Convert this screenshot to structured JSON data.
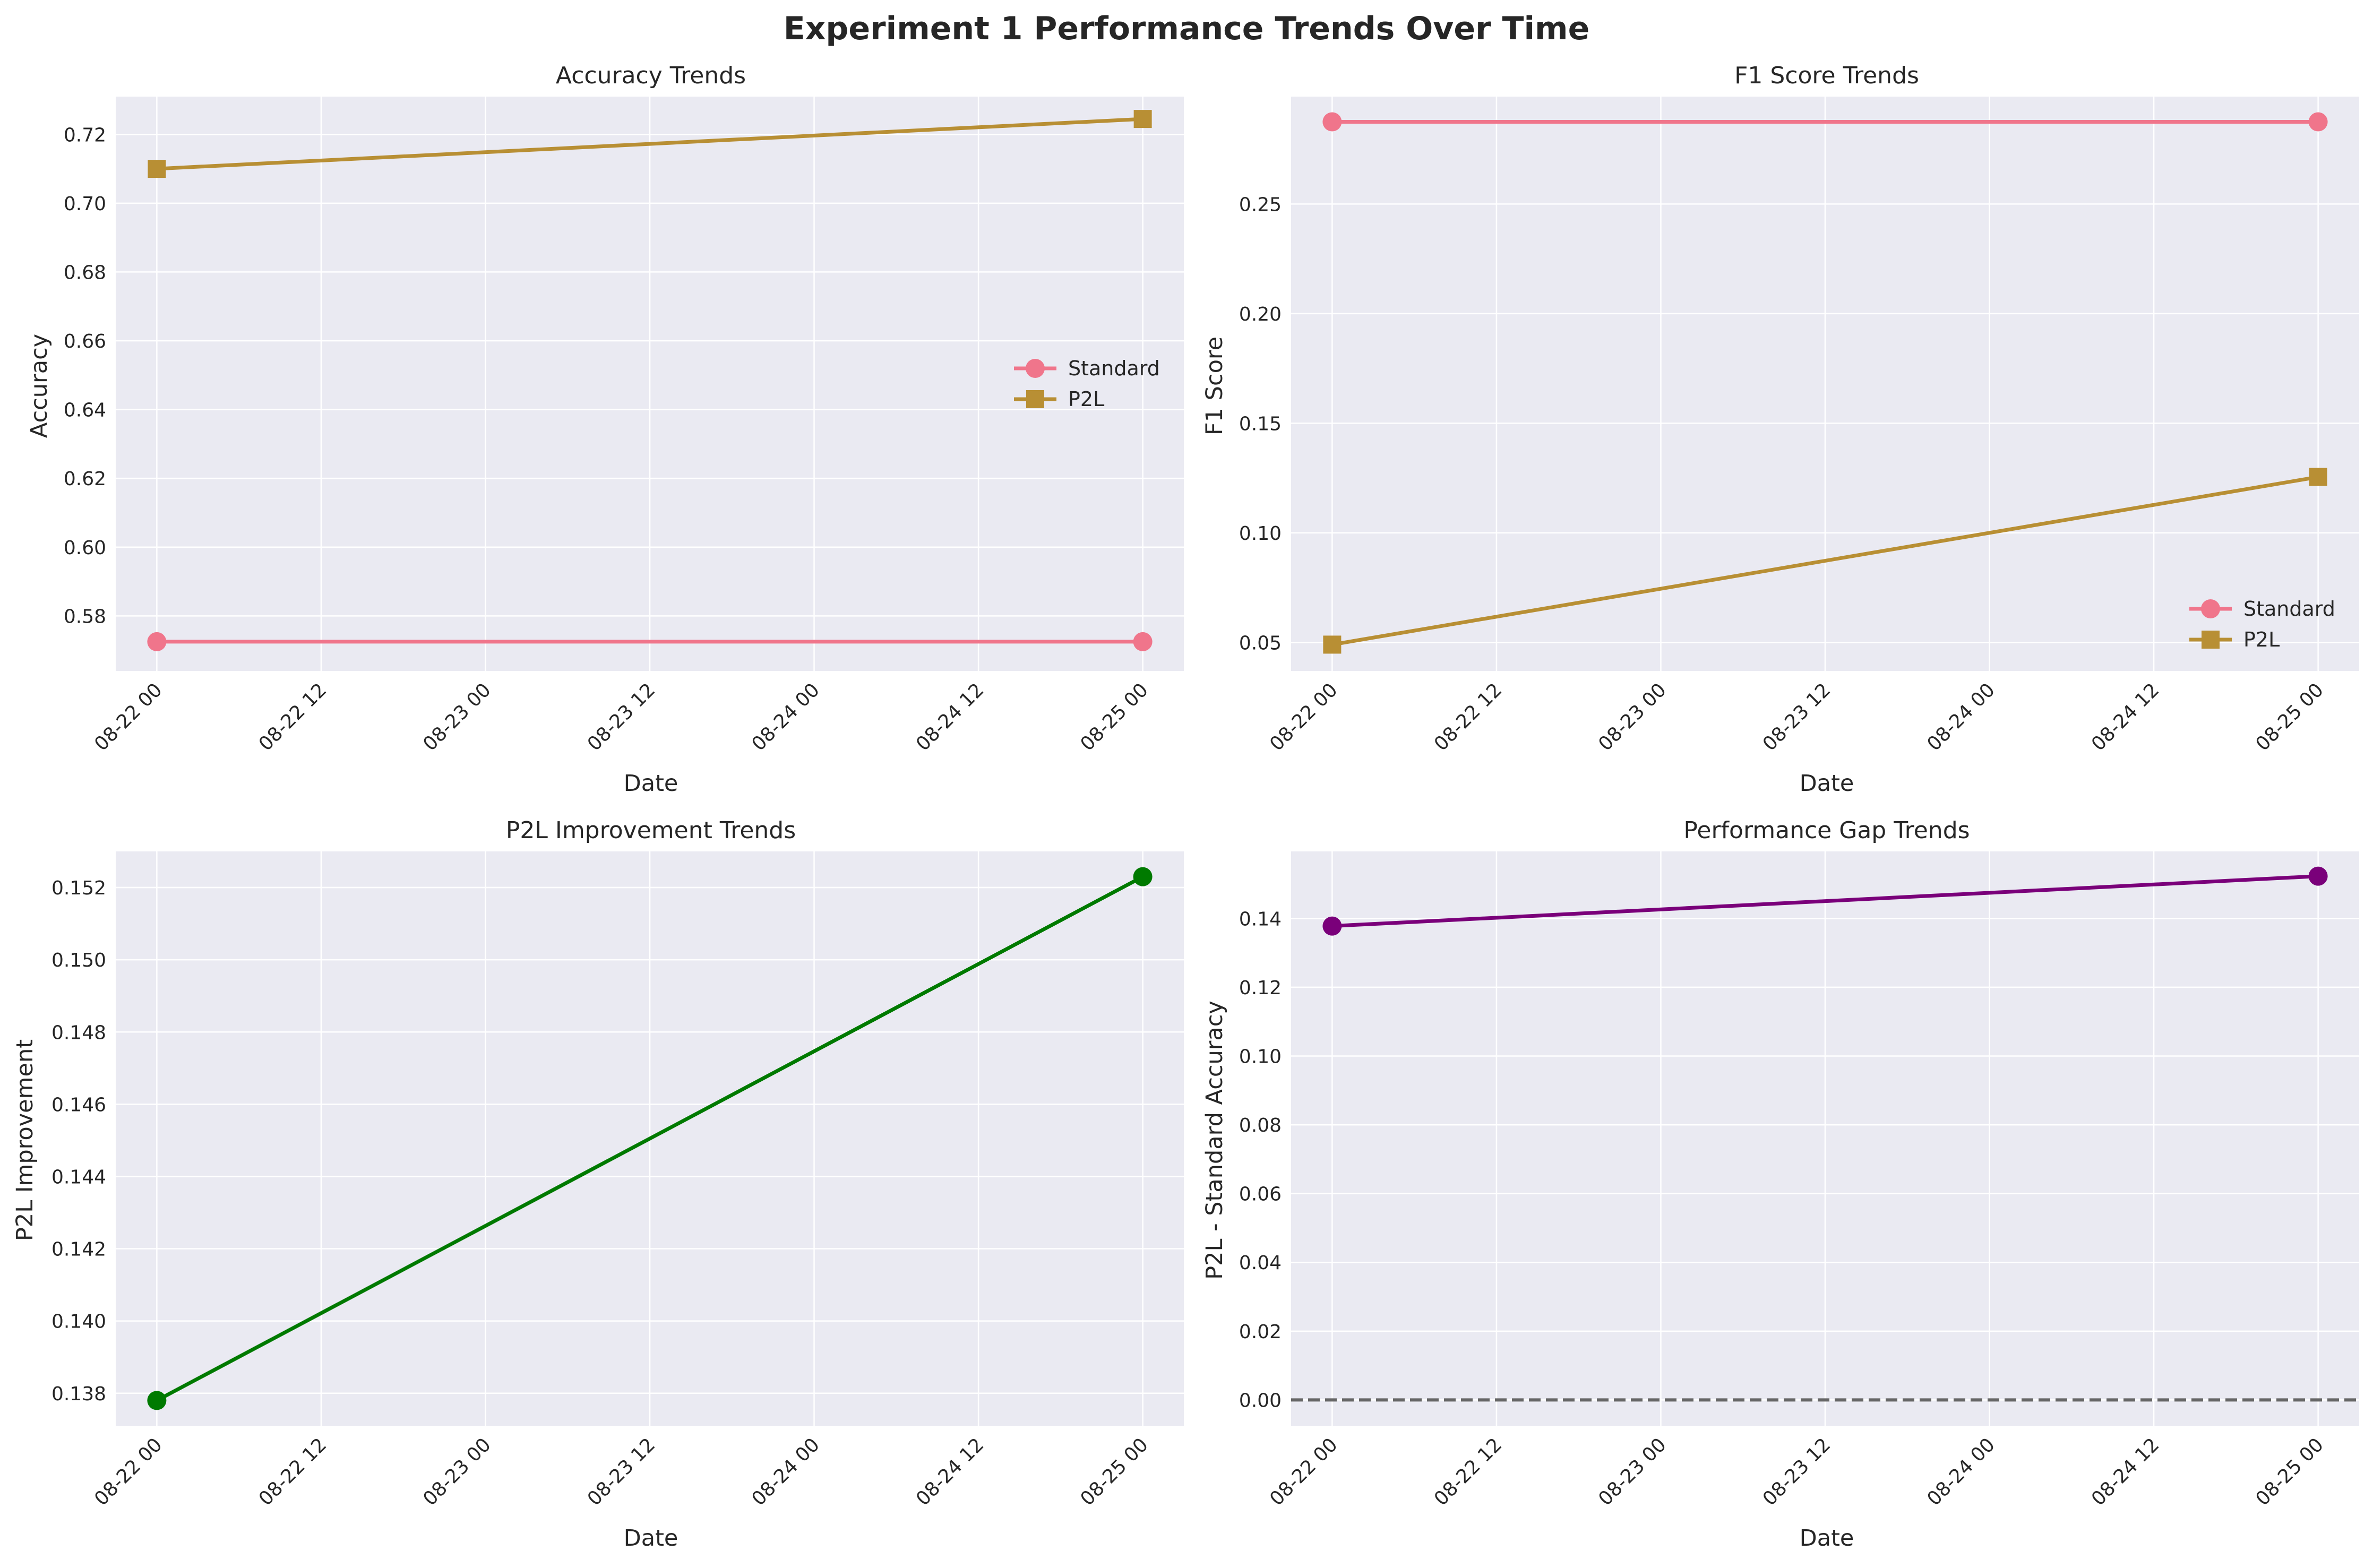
{
  "figure": {
    "title": "Experiment 1 Performance Trends Over Time",
    "background": "#ffffff",
    "panel_background": "#eaeaf2",
    "grid_color": "#ffffff"
  },
  "chart_data": [
    {
      "id": "accuracy",
      "type": "line",
      "title": "Accuracy Trends",
      "xlabel": "Date",
      "ylabel": "Accuracy",
      "x": [
        "2025-08-22 00:00",
        "2025-08-25 00:00"
      ],
      "xlim": [
        "2025-08-21 21:00",
        "2025-08-25 03:00"
      ],
      "xticks": [
        "08-22 00",
        "08-22 12",
        "08-23 00",
        "08-23 12",
        "08-24 00",
        "08-24 12",
        "08-25 00"
      ],
      "ylim": [
        0.564,
        0.731
      ],
      "yticks": [
        0.58,
        0.6,
        0.62,
        0.64,
        0.66,
        0.68,
        0.7,
        0.72
      ],
      "ytick_decimals": 2,
      "grid": true,
      "legend": "center-right",
      "series": [
        {
          "name": "Standard",
          "values": [
            0.5725,
            0.5725
          ],
          "color": "#f0758b",
          "marker": "circle"
        },
        {
          "name": "P2L",
          "values": [
            0.71,
            0.7245
          ],
          "color": "#b88f34",
          "marker": "square"
        }
      ]
    },
    {
      "id": "f1",
      "type": "line",
      "title": "F1 Score Trends",
      "xlabel": "Date",
      "ylabel": "F1 Score",
      "x": [
        "2025-08-22 00:00",
        "2025-08-25 00:00"
      ],
      "xlim": [
        "2025-08-21 21:00",
        "2025-08-25 03:00"
      ],
      "xticks": [
        "08-22 00",
        "08-22 12",
        "08-23 00",
        "08-23 12",
        "08-24 00",
        "08-24 12",
        "08-25 00"
      ],
      "ylim": [
        0.037,
        0.299
      ],
      "yticks": [
        0.05,
        0.1,
        0.15,
        0.2,
        0.25
      ],
      "ytick_decimals": 2,
      "grid": true,
      "legend": "lower-right",
      "series": [
        {
          "name": "Standard",
          "values": [
            0.2875,
            0.2875
          ],
          "color": "#f0758b",
          "marker": "circle"
        },
        {
          "name": "P2L",
          "values": [
            0.049,
            0.1255
          ],
          "color": "#b88f34",
          "marker": "square"
        }
      ]
    },
    {
      "id": "improvement",
      "type": "line",
      "title": "P2L Improvement Trends",
      "xlabel": "Date",
      "ylabel": "P2L Improvement",
      "x": [
        "2025-08-22 00:00",
        "2025-08-25 00:00"
      ],
      "xlim": [
        "2025-08-21 21:00",
        "2025-08-25 03:00"
      ],
      "xticks": [
        "08-22 00",
        "08-22 12",
        "08-23 00",
        "08-23 12",
        "08-24 00",
        "08-24 12",
        "08-25 00"
      ],
      "ylim": [
        0.1371,
        0.153
      ],
      "yticks": [
        0.138,
        0.14,
        0.142,
        0.144,
        0.146,
        0.148,
        0.15,
        0.152
      ],
      "ytick_decimals": 3,
      "grid": true,
      "series": [
        {
          "values": [
            0.1378,
            0.1523
          ],
          "color": "#007a00",
          "marker": "circle"
        }
      ]
    },
    {
      "id": "gap",
      "type": "line",
      "title": "Performance Gap Trends",
      "xlabel": "Date",
      "ylabel": "P2L - Standard Accuracy",
      "x": [
        "2025-08-22 00:00",
        "2025-08-25 00:00"
      ],
      "xlim": [
        "2025-08-21 21:00",
        "2025-08-25 03:00"
      ],
      "xticks": [
        "08-22 00",
        "08-22 12",
        "08-23 00",
        "08-23 12",
        "08-24 00",
        "08-24 12",
        "08-25 00"
      ],
      "ylim": [
        -0.0075,
        0.1595
      ],
      "yticks": [
        0.0,
        0.02,
        0.04,
        0.06,
        0.08,
        0.1,
        0.12,
        0.14
      ],
      "ytick_decimals": 2,
      "grid": true,
      "reference_line": {
        "y": 0,
        "style": "dashed",
        "color": "#666666"
      },
      "series": [
        {
          "values": [
            0.1378,
            0.1523
          ],
          "color": "#7a007a",
          "marker": "circle"
        }
      ]
    }
  ]
}
